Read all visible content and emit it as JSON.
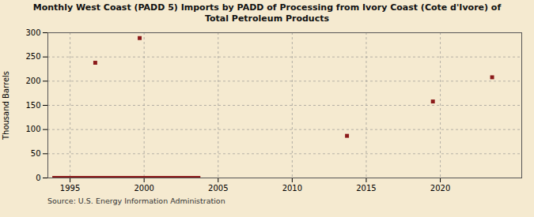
{
  "chart_data": {
    "type": "scatter",
    "title": "Monthly West Coast (PADD 5) Imports by PADD of Processing from Ivory Coast (Cote d'Ivore) of\nTotal Petroleum Products",
    "ylabel": "Thousand Barrels",
    "source": "Source: U.S. Energy Information Administration",
    "series": [
      {
        "type": "line",
        "color": "#8b1a1a",
        "x": [
          1993.8,
          2003.8
        ],
        "values": [
          1.5,
          1.5
        ]
      },
      {
        "type": "scatter",
        "color": "#8b1a1a",
        "marker": "square",
        "x": [
          1996.7,
          1999.7,
          2013.7,
          2019.5,
          2023.5
        ],
        "values": [
          238,
          289,
          87,
          158,
          208
        ]
      }
    ],
    "xlim": [
      1993.5,
      2025.5
    ],
    "ylim": [
      0,
      300
    ],
    "xticks": [
      1995,
      2000,
      2005,
      2010,
      2015,
      2020
    ],
    "yticks": [
      0,
      50,
      100,
      150,
      200,
      250,
      300
    ],
    "grid": true
  }
}
